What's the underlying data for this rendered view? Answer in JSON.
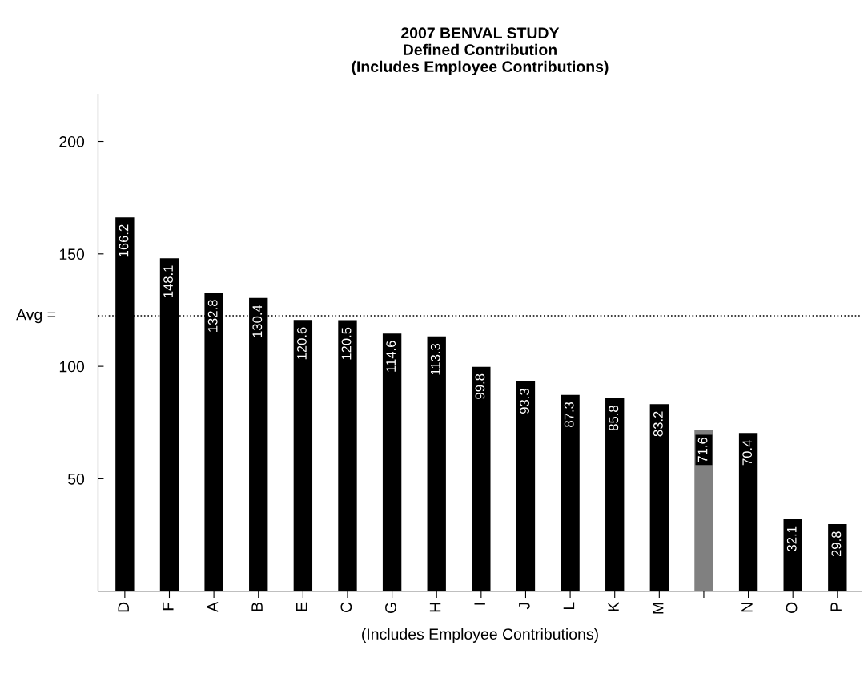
{
  "chart_data": {
    "type": "bar",
    "title": "2007 BENVAL STUDY\nDefined Contribution\n(Includes Employee Contributions)",
    "xlabel": "(Includes Employee Contributions)",
    "ylabel": "Avg =",
    "categories": [
      "D",
      "F",
      "A",
      "B",
      "E",
      "C",
      "G",
      "H",
      "I",
      "J",
      "L",
      "K",
      "M",
      null,
      "N",
      "O",
      "P"
    ],
    "values": [
      166.2,
      148.1,
      132.8,
      130.4,
      120.6,
      120.5,
      114.6,
      113.3,
      99.8,
      93.3,
      87.3,
      85.8,
      83.2,
      71.6,
      70.4,
      32.1,
      29.8
    ],
    "colors": [
      "#000000",
      "#000000",
      "#000000",
      "#000000",
      "#000000",
      "#000000",
      "#000000",
      "#000000",
      "#000000",
      "#000000",
      "#000000",
      "#000000",
      "#000000",
      "#808080",
      "#000000",
      "#000000",
      "#000000"
    ],
    "data_labels": true,
    "ylim": [
      0,
      221
    ],
    "yticks": [
      50,
      100,
      150,
      200
    ],
    "ref_lines": [
      {
        "axis": "y",
        "value": 122.5,
        "color": "#000000",
        "line_style": "dotted"
      }
    ],
    "grid": false,
    "legend": false
  }
}
